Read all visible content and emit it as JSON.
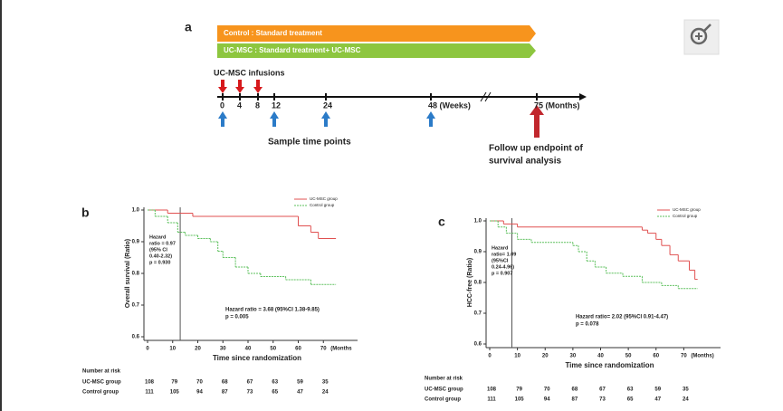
{
  "timeline": {
    "panel_label": "a",
    "bars": [
      "Control  : Standard treatment",
      "UC-MSC : Standard treatment+ UC-MSC"
    ],
    "infusions_label": "UC-MSC  infusions",
    "ticks": [
      "0",
      "4",
      "8",
      "12",
      "24",
      "48 (Weeks)",
      "75 (Months)"
    ],
    "sample_label": "Sample time points",
    "endpoint_label": [
      "Follow up endpoint of",
      "survival analysis"
    ]
  },
  "chart_data": [
    {
      "type": "km",
      "panel_label": "b",
      "ylabel": "Overall survival (Ratio)",
      "xlabel": "Time since randomization",
      "x_unit": "(Months",
      "xlim": [
        0,
        80
      ],
      "ylim": [
        0.6,
        1.0
      ],
      "xticks": [
        0,
        10,
        20,
        30,
        40,
        50,
        60,
        70
      ],
      "yticks": [
        0.6,
        0.7,
        0.8,
        0.9,
        {
          "value": 1,
          "label": "1.0"
        }
      ],
      "cutoff": 13,
      "annotations": [
        [
          "Hazard",
          "ratio = 0.97",
          "(95% CI",
          "0.40-2.32)",
          "p = 0.930"
        ],
        [
          "Hazard ratio = 3.68 (95%CI 1.38-9.85)",
          "p = 0.005"
        ]
      ],
      "series": [
        {
          "name": "UC-MSC group",
          "color": "#e05050",
          "x": [
            0,
            8,
            18,
            60,
            65,
            68,
            75
          ],
          "values": [
            1,
            0.99,
            0.98,
            0.95,
            0.93,
            0.91,
            0.91
          ]
        },
        {
          "name": "Control group",
          "color": "#5cc05c",
          "x": [
            0,
            3,
            8,
            12,
            15,
            20,
            25,
            28,
            30,
            35,
            40,
            45,
            55,
            65,
            75
          ],
          "values": [
            1,
            0.98,
            0.96,
            0.93,
            0.92,
            0.91,
            0.9,
            0.87,
            0.85,
            0.82,
            0.8,
            0.79,
            0.78,
            0.765,
            0.765
          ]
        }
      ],
      "risk_table": {
        "title": "Number at risk",
        "rows": [
          {
            "name": "UC-MSC group",
            "values": [
              108,
              79,
              70,
              68,
              67,
              63,
              59,
              35
            ]
          },
          {
            "name": "Control group",
            "values": [
              111,
              105,
              94,
              87,
              73,
              65,
              47,
              24
            ]
          }
        ]
      }
    },
    {
      "type": "km",
      "panel_label": "c",
      "ylabel": "HCC-free (Ratio)",
      "xlabel": "Time since randomization",
      "x_unit": "(Months)",
      "xlim": [
        0,
        80
      ],
      "ylim": [
        0.6,
        1.0
      ],
      "xticks": [
        0,
        10,
        20,
        30,
        40,
        50,
        60,
        70
      ],
      "yticks": [
        0.6,
        0.7,
        0.8,
        0.9,
        {
          "value": 1,
          "label": "1.0"
        }
      ],
      "cutoff": 8,
      "annotations": [
        [
          "Hazard",
          "ratio= 1.09",
          "(95%CI",
          "0.24-4.96)",
          "p = 0.907"
        ],
        [
          "Hazard ratio= 2.02 (95%CI 0.91-4.47)",
          "p = 0.078"
        ]
      ],
      "series": [
        {
          "name": "UC-MSC group",
          "color": "#e05050",
          "x": [
            0,
            5,
            10,
            55,
            57,
            60,
            62,
            65,
            68,
            72,
            74,
            75
          ],
          "values": [
            1,
            0.99,
            0.98,
            0.97,
            0.96,
            0.94,
            0.92,
            0.89,
            0.87,
            0.84,
            0.81,
            0.81
          ]
        },
        {
          "name": "Control group",
          "color": "#5cc05c",
          "x": [
            0,
            3,
            6,
            10,
            15,
            30,
            32,
            35,
            38,
            42,
            48,
            55,
            62,
            68,
            75
          ],
          "values": [
            1,
            0.98,
            0.96,
            0.94,
            0.93,
            0.92,
            0.9,
            0.87,
            0.85,
            0.83,
            0.82,
            0.8,
            0.79,
            0.78,
            0.78
          ]
        }
      ],
      "risk_table": {
        "title": "Number at risk",
        "rows": [
          {
            "name": "UC-MSC group",
            "values": [
              108,
              79,
              70,
              68,
              67,
              63,
              59,
              35
            ]
          },
          {
            "name": "Control group",
            "values": [
              111,
              105,
              94,
              87,
              73,
              65,
              47,
              24
            ]
          }
        ]
      }
    }
  ]
}
